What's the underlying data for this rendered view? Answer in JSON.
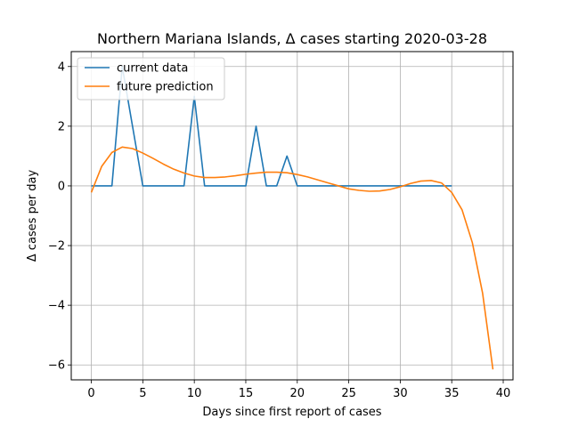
{
  "chart_data": {
    "type": "line",
    "title": "Northern Mariana Islands, Δ cases starting 2020-03-28",
    "xlabel": "Days since first report of cases",
    "ylabel": "Δ cases per day",
    "xlim": [
      -1.95,
      40.95
    ],
    "ylim": [
      -6.5,
      4.5
    ],
    "x_ticks": [
      0,
      5,
      10,
      15,
      20,
      25,
      30,
      35,
      40
    ],
    "x_tick_labels": [
      "0",
      "5",
      "10",
      "15",
      "20",
      "25",
      "30",
      "35",
      "40"
    ],
    "y_ticks": [
      -6,
      -4,
      -2,
      0,
      2,
      4
    ],
    "y_tick_labels": [
      "−6",
      "−4",
      "−2",
      "0",
      "2",
      "4"
    ],
    "grid": true,
    "legend_placement": "top-left",
    "series": [
      {
        "name": "current data",
        "color": "#1f77b4",
        "x": [
          0,
          1,
          2,
          3,
          4,
          5,
          6,
          7,
          8,
          9,
          10,
          11,
          12,
          13,
          14,
          15,
          16,
          17,
          18,
          19,
          20,
          21,
          22,
          23,
          24,
          25,
          26,
          27,
          28,
          29,
          30,
          31,
          32,
          33,
          34,
          35
        ],
        "values": [
          0,
          0,
          0,
          4,
          2,
          0,
          0,
          0,
          0,
          0,
          3,
          0,
          0,
          0,
          0,
          0,
          2,
          0,
          0,
          1,
          0,
          0,
          0,
          0,
          0,
          0,
          0,
          0,
          0,
          0,
          0,
          0,
          0,
          0,
          0,
          0
        ]
      },
      {
        "name": "future prediction",
        "color": "#ff7f0e",
        "x": [
          0,
          1,
          2,
          3,
          4,
          5,
          6,
          7,
          8,
          9,
          10,
          11,
          12,
          13,
          14,
          15,
          16,
          17,
          18,
          19,
          20,
          21,
          22,
          23,
          24,
          25,
          26,
          27,
          28,
          29,
          30,
          31,
          32,
          33,
          34,
          35,
          36,
          37,
          38,
          39
        ],
        "values": [
          -0.22,
          0.65,
          1.12,
          1.3,
          1.25,
          1.1,
          0.92,
          0.73,
          0.56,
          0.43,
          0.33,
          0.28,
          0.28,
          0.3,
          0.34,
          0.39,
          0.43,
          0.46,
          0.46,
          0.44,
          0.38,
          0.3,
          0.2,
          0.1,
          0.0,
          -0.1,
          -0.15,
          -0.18,
          -0.17,
          -0.12,
          -0.03,
          0.08,
          0.16,
          0.18,
          0.1,
          -0.22,
          -0.8,
          -1.9,
          -3.6,
          -6.15
        ]
      }
    ]
  }
}
